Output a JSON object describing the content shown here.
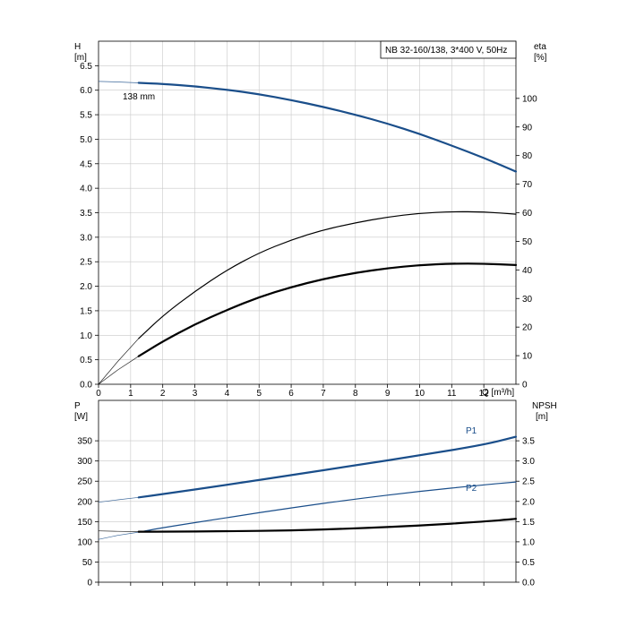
{
  "chart_data": [
    {
      "type": "line",
      "legend_text": "NB 32-160/138, 3*400 V, 50Hz",
      "x": {
        "label": "Q [m³/h]",
        "range": [
          0,
          13
        ],
        "ticks": [
          0,
          1,
          2,
          3,
          4,
          5,
          6,
          7,
          8,
          9,
          10,
          11,
          12
        ]
      },
      "y_left": {
        "label_line1": "H",
        "label_line2": "[m]",
        "range": [
          0,
          7
        ],
        "ticks": [
          "0.0",
          "0.5",
          "1.0",
          "1.5",
          "2.0",
          "2.5",
          "3.0",
          "3.5",
          "4.0",
          "4.5",
          "5.0",
          "5.5",
          "6.0",
          "6.5"
        ]
      },
      "y_right": {
        "label_line1": "eta",
        "label_line2": "[%]",
        "range": [
          0,
          120
        ],
        "ticks": [
          "0",
          "10",
          "20",
          "30",
          "40",
          "50",
          "60",
          "70",
          "80",
          "90",
          "100"
        ]
      },
      "grid": true,
      "series": [
        {
          "name": "138 mm",
          "axis": "left",
          "color": "#1a4e8a",
          "stroke": 2.2,
          "extrapolated": {
            "x": [
              0,
              0.5,
              1.25
            ],
            "y": [
              6.18,
              6.17,
              6.15
            ]
          },
          "points": {
            "x": [
              1.25,
              2,
              3,
              4,
              5,
              6,
              7,
              8,
              9,
              10,
              11,
              12,
              13
            ],
            "y": [
              6.15,
              6.13,
              6.08,
              6.01,
              5.92,
              5.8,
              5.66,
              5.5,
              5.32,
              5.11,
              4.87,
              4.62,
              4.34
            ]
          }
        },
        {
          "name": "",
          "axis": "right",
          "color": "#000000",
          "stroke": 1.2,
          "extrapolated": {
            "x": [
              0,
              0.6,
              1.25
            ],
            "y": [
              0,
              8,
              16
            ]
          },
          "points": {
            "x": [
              1.25,
              2,
              3,
              4,
              5,
              6,
              7,
              8,
              9,
              10,
              11,
              12,
              13
            ],
            "y": [
              16,
              24,
              32.5,
              40,
              46,
              50.5,
              54,
              56.5,
              58.5,
              59.8,
              60.4,
              60.3,
              59.5
            ]
          }
        },
        {
          "name": "",
          "axis": "right",
          "color": "#000000",
          "stroke": 2.2,
          "extrapolated": {
            "x": [
              0,
              0.6,
              1.25
            ],
            "y": [
              0,
              5,
              9.8
            ]
          },
          "points": {
            "x": [
              1.25,
              2,
              3,
              4,
              5,
              6,
              7,
              8,
              9,
              10,
              11,
              12,
              13
            ],
            "y": [
              9.8,
              15,
              21,
              26,
              30.5,
              34,
              36.8,
              39,
              40.6,
              41.7,
              42.2,
              42.2,
              41.7
            ]
          }
        }
      ]
    },
    {
      "type": "line",
      "x": {
        "range": [
          0,
          13
        ],
        "ticks": [
          0,
          1,
          2,
          3,
          4,
          5,
          6,
          7,
          8,
          9,
          10,
          11,
          12
        ]
      },
      "y_left": {
        "label_line1": "P",
        "label_line2": "[W]",
        "range": [
          0,
          450
        ],
        "ticks": [
          "0",
          "50",
          "100",
          "150",
          "200",
          "250",
          "300",
          "350"
        ]
      },
      "y_right": {
        "label_line1": "NPSH",
        "label_line2": "[m]",
        "range": [
          0,
          4.5
        ],
        "ticks": [
          "0.0",
          "0.5",
          "1.0",
          "1.5",
          "2.0",
          "2.5",
          "3.0",
          "3.5"
        ]
      },
      "grid": true,
      "series": [
        {
          "name": "P1",
          "axis": "left",
          "color": "#1a4e8a",
          "stroke": 2.2,
          "extrapolated": {
            "x": [
              0,
              0.6,
              1.25
            ],
            "y": [
              198,
              204,
              210
            ]
          },
          "points": {
            "x": [
              1.25,
              2,
              4,
              6,
              8,
              10,
              12,
              13
            ],
            "y": [
              210,
              218,
              241,
              265,
              289,
              314,
              340,
              360
            ]
          }
        },
        {
          "name": "P2",
          "axis": "left",
          "color": "#1a4e8a",
          "stroke": 1.2,
          "extrapolated": {
            "x": [
              0,
              0.6,
              1.25
            ],
            "y": [
              106,
              116,
              124
            ]
          },
          "points": {
            "x": [
              1.25,
              2,
              4,
              6,
              8,
              10,
              12,
              13
            ],
            "y": [
              124,
              135,
              160,
              184,
              206,
              225,
              241,
              248
            ]
          }
        },
        {
          "name": "",
          "axis": "right",
          "color": "#000000",
          "stroke": 2.2,
          "extrapolated": {
            "x": [
              0,
              0.6,
              1.25
            ],
            "y": [
              1.27,
              1.26,
              1.25
            ]
          },
          "points": {
            "x": [
              1.25,
              2,
              4,
              6,
              8,
              10,
              12,
              13
            ],
            "y": [
              1.25,
              1.25,
              1.26,
              1.28,
              1.33,
              1.4,
              1.5,
              1.57
            ]
          }
        }
      ]
    }
  ]
}
